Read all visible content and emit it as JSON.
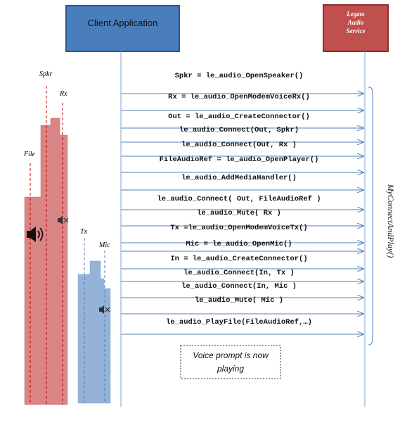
{
  "participants": {
    "client": {
      "label": "Client Application",
      "fill": "#4a7ebb",
      "stroke": "#2f5597"
    },
    "service": {
      "lines": [
        "Legato",
        "Audio",
        "Service"
      ],
      "fill": "#c0504d",
      "stroke": "#8b2f2c"
    }
  },
  "calls": [
    "Spkr = le_audio_OpenSpeaker()",
    "Rx = le_audio_OpenModemVoiceRx()",
    "Out = le_audio_CreateConnector()",
    "le_audio_Connect(Out, Spkr)",
    "le_audio_Connect(Out, Rx )",
    "FileAudioRef = le_audio_OpenPlayer()",
    "le_audio_AddMediaHandler()",
    "le_audio_Connect( Out, FileAudioRef )",
    "le_audio_Mute( Rx )",
    "Tx =le_audio_OpenModemVoiceTx()",
    "Mic = le_audio_OpenMic()",
    "In = le_audio_CreateConnector()",
    "le_audio_Connect(In, Tx )",
    "le_audio_Connect(In, Mic )",
    "le_audio_Mute( Mic )",
    "le_audio_PlayFile(FileAudioRef,…)"
  ],
  "group_label": "MyConnectAndPlay()",
  "note": [
    "Voice prompt is now",
    "playing"
  ],
  "output_stack": {
    "color": "#d98585",
    "labels": {
      "spkr": "Spkr",
      "rx": "Rx",
      "file": "File"
    }
  },
  "input_stack": {
    "color": "#95b3d7",
    "labels": {
      "tx": "Tx",
      "mic": "Mic"
    }
  },
  "colors": {
    "arrow": "#4f81bd",
    "dashed": "#c00000",
    "lifeline": "#7ea6d6"
  }
}
